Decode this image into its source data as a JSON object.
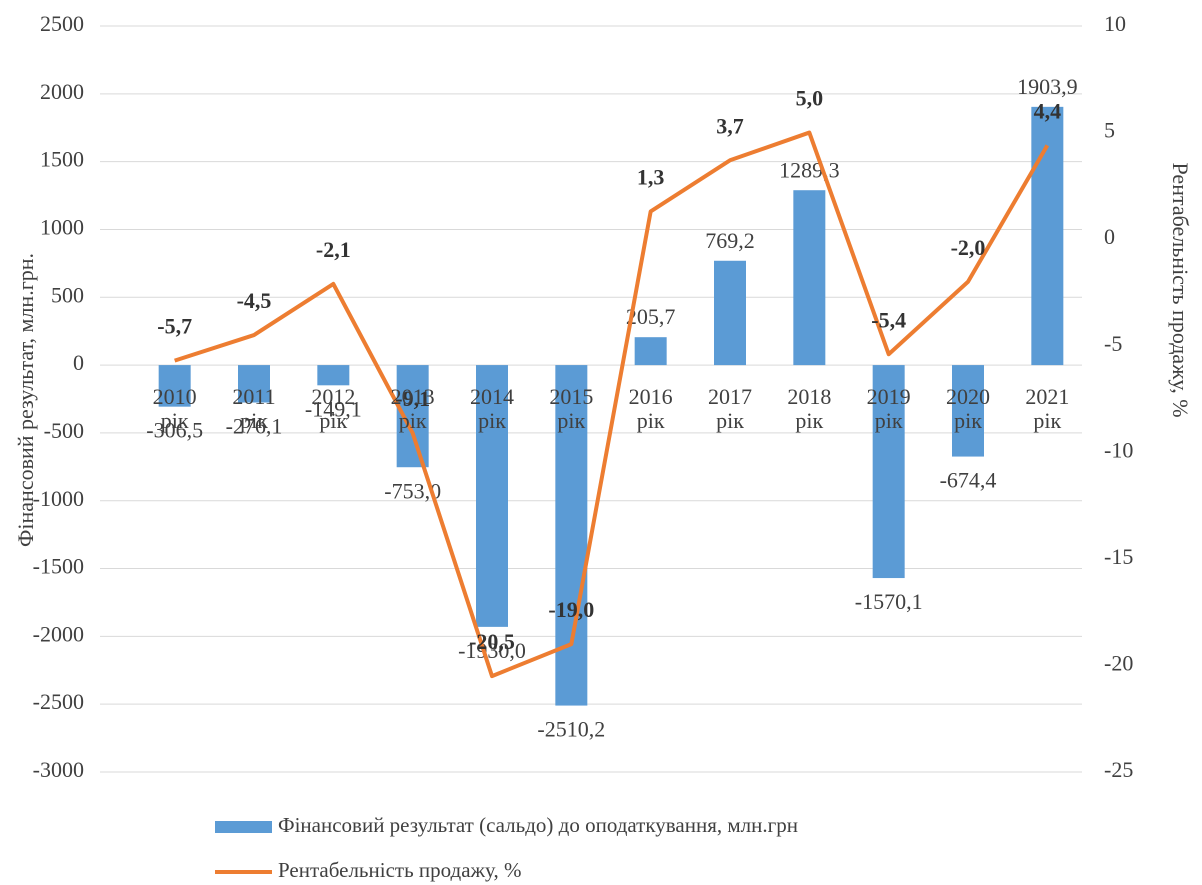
{
  "chart_data": {
    "type": "bar",
    "categories": [
      "2010 рік",
      "2011 рік",
      "2012 рік",
      "2013 рік",
      "2014 рік",
      "2015 рік",
      "2016 рік",
      "2017 рік",
      "2018 рік",
      "2019 рік",
      "2020 рік",
      "2021 рік"
    ],
    "series": [
      {
        "name": "Фінансовий результат (сальдо) до оподаткування, млн.грн",
        "type": "bar",
        "color": "#5b9bd5",
        "values": [
          -306.5,
          -276.1,
          -149.1,
          -753.0,
          -1930.0,
          -2510.2,
          205.7,
          769.2,
          1289.3,
          -1570.1,
          -674.4,
          1903.9
        ],
        "value_labels": [
          "-306,5",
          "-276,1",
          "-149,1",
          "-753,0",
          "-1930,0",
          "-2510,2",
          "205,7",
          "769,2",
          "1289,3",
          "-1570,1",
          "-674,4",
          "1903,9"
        ]
      },
      {
        "name": "Рентабельність продажу, %",
        "type": "line",
        "axis": "y2",
        "color": "#ed7d31",
        "values": [
          -5.7,
          -4.5,
          -2.1,
          -9.1,
          -20.5,
          -19.0,
          1.3,
          3.7,
          5.0,
          -5.4,
          -2.0,
          4.4
        ],
        "value_labels": [
          "-5,7",
          "-4,5",
          "-2,1",
          "-9,1",
          "-20,5",
          "-19,0",
          "1,3",
          "3,7",
          "5,0",
          "-5,4",
          "-2,0",
          "4,4"
        ]
      }
    ],
    "y_label": "Фінансовий результат, млн.грн.",
    "y2_label": "Рентабельність продажу, %",
    "ylim": [
      -3000,
      2500
    ],
    "yticks": [
      -3000,
      -2500,
      -2000,
      -1500,
      -1000,
      -500,
      0,
      500,
      1000,
      1500,
      2000,
      2500
    ],
    "y2lim": [
      -25,
      10
    ],
    "y2ticks": [
      -25,
      -20,
      -15,
      -10,
      -5,
      0,
      5,
      10
    ],
    "grid": true,
    "legend": "bottom"
  }
}
